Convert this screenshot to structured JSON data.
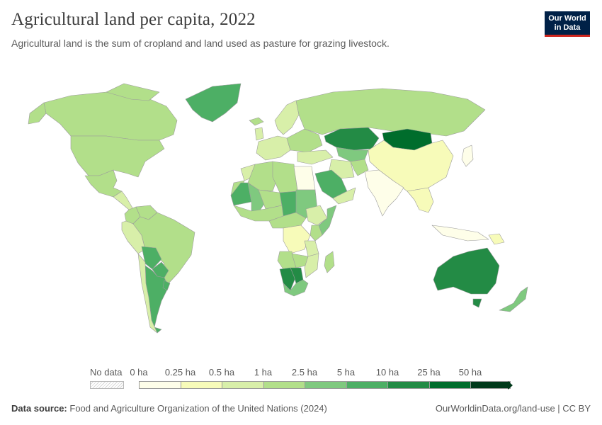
{
  "header": {
    "title": "Agricultural land per capita, 2022",
    "subtitle": "Agricultural land is the sum of cropland and land used as pasture for grazing livestock."
  },
  "logo": {
    "line1": "Our World",
    "line2": "in Data"
  },
  "legend": {
    "no_data_label": "No data",
    "ticks": [
      "0 ha",
      "0.25 ha",
      "0.5 ha",
      "1 ha",
      "2.5 ha",
      "5 ha",
      "10 ha",
      "25 ha",
      "50 ha"
    ],
    "colors": [
      "#fefee9",
      "#f7fbb9",
      "#d8efa9",
      "#b2df8a",
      "#7fc97f",
      "#4daf65",
      "#238b45",
      "#006d2c",
      "#00391a"
    ]
  },
  "footer": {
    "source_label": "Data source:",
    "source_text": "Food and Agriculture Organization of the United Nations (2024)",
    "url_text": "OurWorldinData.org/land-use | CC BY"
  },
  "map_data": {
    "type": "choropleth",
    "year": 2022,
    "unit": "ha",
    "countries": [
      {
        "name": "Canada",
        "bin": 3
      },
      {
        "name": "United States",
        "bin": 3
      },
      {
        "name": "Greenland",
        "bin": 5
      },
      {
        "name": "Mexico",
        "bin": 3
      },
      {
        "name": "Central America",
        "bin": 2
      },
      {
        "name": "Colombia",
        "bin": 3
      },
      {
        "name": "Venezuela",
        "bin": 3
      },
      {
        "name": "Peru",
        "bin": 2
      },
      {
        "name": "Brazil",
        "bin": 3
      },
      {
        "name": "Bolivia",
        "bin": 5
      },
      {
        "name": "Paraguay",
        "bin": 5
      },
      {
        "name": "Argentina",
        "bin": 5
      },
      {
        "name": "Chile",
        "bin": 2
      },
      {
        "name": "Uruguay",
        "bin": 5
      },
      {
        "name": "Iceland",
        "bin": 3
      },
      {
        "name": "Scandinavia",
        "bin": 2
      },
      {
        "name": "Western Europe",
        "bin": 2
      },
      {
        "name": "Eastern Europe",
        "bin": 3
      },
      {
        "name": "Russia",
        "bin": 3
      },
      {
        "name": "Kazakhstan",
        "bin": 6
      },
      {
        "name": "Mongolia",
        "bin": 7
      },
      {
        "name": "Central Asia",
        "bin": 4
      },
      {
        "name": "Turkey & Caucasus",
        "bin": 2
      },
      {
        "name": "Iran",
        "bin": 2
      },
      {
        "name": "Afghanistan",
        "bin": 3
      },
      {
        "name": "China",
        "bin": 1
      },
      {
        "name": "India",
        "bin": 0
      },
      {
        "name": "Southeast Asia",
        "bin": 1
      },
      {
        "name": "Japan",
        "bin": 0
      },
      {
        "name": "Indonesia",
        "bin": 0
      },
      {
        "name": "Saudi Arabia",
        "bin": 5
      },
      {
        "name": "Yemen & Oman",
        "bin": 2
      },
      {
        "name": "Egypt",
        "bin": 0
      },
      {
        "name": "Libya",
        "bin": 3
      },
      {
        "name": "Algeria",
        "bin": 3
      },
      {
        "name": "Morocco",
        "bin": 2
      },
      {
        "name": "Western Sahara",
        "bin": 3
      },
      {
        "name": "Mauritania",
        "bin": 5
      },
      {
        "name": "Mali",
        "bin": 4
      },
      {
        "name": "Niger",
        "bin": 3
      },
      {
        "name": "Chad",
        "bin": 5
      },
      {
        "name": "Sudan",
        "bin": 4
      },
      {
        "name": "West Africa",
        "bin": 3
      },
      {
        "name": "Ethiopia",
        "bin": 2
      },
      {
        "name": "Somalia",
        "bin": 4
      },
      {
        "name": "Kenya",
        "bin": 3
      },
      {
        "name": "Central Africa",
        "bin": 3
      },
      {
        "name": "DR Congo",
        "bin": 1
      },
      {
        "name": "Tanzania",
        "bin": 2
      },
      {
        "name": "Angola",
        "bin": 3
      },
      {
        "name": "Zambia",
        "bin": 3
      },
      {
        "name": "Namibia",
        "bin": 6
      },
      {
        "name": "Botswana",
        "bin": 6
      },
      {
        "name": "South Africa",
        "bin": 4
      },
      {
        "name": "Mozambique",
        "bin": 2
      },
      {
        "name": "Madagascar",
        "bin": 3
      },
      {
        "name": "Australia",
        "bin": 6
      },
      {
        "name": "New Zealand",
        "bin": 4
      },
      {
        "name": "Papua New Guinea",
        "bin": 1
      }
    ]
  }
}
